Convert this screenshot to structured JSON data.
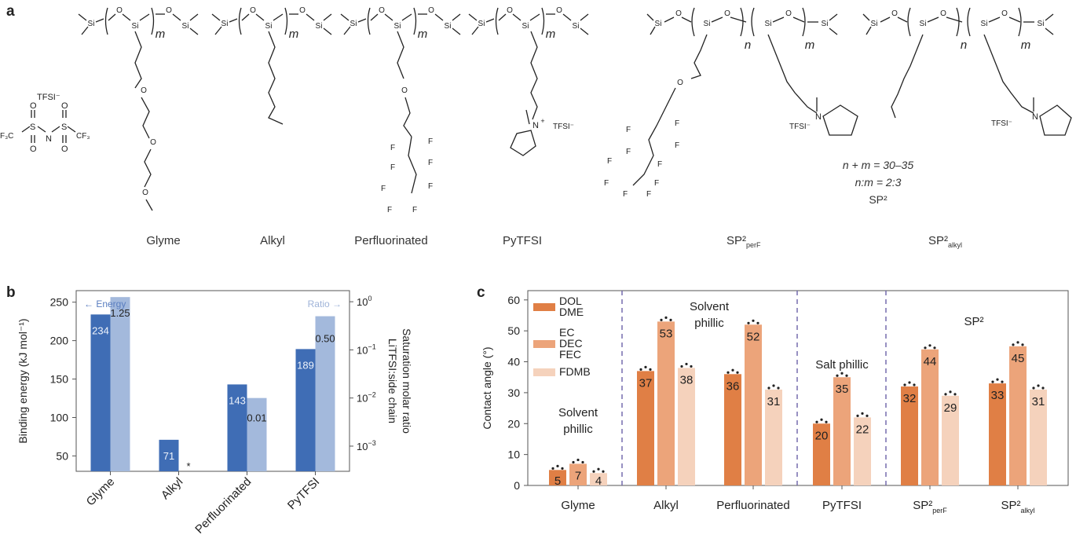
{
  "panel_labels": {
    "a": "a",
    "b": "b",
    "c": "c"
  },
  "panel_a": {
    "tfsi_label": "TFSI⁻",
    "tfsi_n": "N",
    "tfsi_s": "S",
    "tfsi_cf3": "CF₃",
    "tfsi_f3c": "F₃C",
    "si": "Si",
    "o": "O",
    "f": "F",
    "n_plus": "N",
    "plus": "+",
    "tfsi_counter": "TFSI⁻",
    "m": "m",
    "n": "n",
    "names": [
      "Glyme",
      "Alkyl",
      "Perfluorinated",
      "PyTFSI"
    ],
    "sp2_perf_main": "SP²",
    "sp2_perf_sub": "perF",
    "sp2_alkyl_main": "SP²",
    "sp2_alkyl_sub": "alkyl",
    "formula_lines": [
      "n + m = 30–35",
      "n:m = 2:3",
      "SP²"
    ]
  },
  "chart_data": [
    {
      "type": "bar",
      "panel": "b",
      "categories": [
        "Glyme",
        "Alkyl",
        "Perfluorinated",
        "PyTFSI"
      ],
      "ylabel": "Binding energy (kJ mol⁻¹)",
      "y2label_lines": [
        "Saturation molar ratio",
        "LiTFSI:side chain"
      ],
      "ylim": [
        30,
        265
      ],
      "yticks": [
        50,
        100,
        150,
        200,
        250
      ],
      "y2scale": "log",
      "y2lim": [
        0.0003,
        1.7
      ],
      "y2ticks": [
        {
          "value": 1,
          "label_main": "10",
          "label_exp": "0"
        },
        {
          "value": 0.1,
          "label_main": "10",
          "label_exp": "−1"
        },
        {
          "value": 0.01,
          "label_main": "10",
          "label_exp": "−2"
        },
        {
          "value": 0.001,
          "label_main": "10",
          "label_exp": "−3"
        }
      ],
      "arrow_left": "← Energy",
      "arrow_right": "Ratio →",
      "missing_marker": "*",
      "series": [
        {
          "name": "Energy",
          "axis": "left",
          "color": "#3f6db5",
          "values": [
            234,
            71,
            143,
            189
          ],
          "labels": [
            "234",
            "71",
            "143",
            "189"
          ]
        },
        {
          "name": "Ratio",
          "axis": "right",
          "color": "#a3b9dc",
          "values": [
            1.25,
            null,
            0.01,
            0.5
          ],
          "labels": [
            "1.25",
            "",
            "0.01",
            "0.50"
          ]
        }
      ]
    },
    {
      "type": "bar",
      "panel": "c",
      "categories": [
        "Glyme",
        "Alkyl",
        "Perfluorinated",
        "PyTFSI",
        "SP²perF",
        "SP²alkyl"
      ],
      "category_labels": [
        {
          "main": "Glyme",
          "sub": ""
        },
        {
          "main": "Alkyl",
          "sub": ""
        },
        {
          "main": "Perfluorinated",
          "sub": ""
        },
        {
          "main": "PyTFSI",
          "sub": ""
        },
        {
          "main": "SP²",
          "sub": "perF"
        },
        {
          "main": "SP²",
          "sub": "alkyl"
        }
      ],
      "ylabel": "Contact angle (°)",
      "ylim": [
        0,
        63
      ],
      "yticks": [
        0,
        10,
        20,
        30,
        40,
        50,
        60
      ],
      "legend": [
        {
          "lines": [
            "DOL",
            "DME"
          ],
          "color": "#e07f45"
        },
        {
          "lines": [
            "EC",
            "DEC",
            "FEC"
          ],
          "color": "#eca47a"
        },
        {
          "lines": [
            "FDMB"
          ],
          "color": "#f5d2bc"
        }
      ],
      "legend_position": "top-left",
      "series": [
        {
          "name": "DOL DME",
          "color": "#e07f45",
          "values": [
            5,
            37,
            36,
            20,
            32,
            33
          ]
        },
        {
          "name": "EC DEC FEC",
          "color": "#eca47a",
          "values": [
            7,
            53,
            52,
            35,
            44,
            45
          ]
        },
        {
          "name": "FDMB",
          "color": "#f5d2bc",
          "values": [
            4,
            38,
            31,
            22,
            29,
            31
          ]
        }
      ],
      "region_labels": [
        {
          "lines": [
            "Solvent",
            "phillic"
          ]
        },
        {
          "lines": [
            "Solvent",
            "phillic"
          ]
        },
        {
          "lines": [
            "Salt phillic"
          ]
        },
        {
          "lines": [
            "SP²"
          ]
        }
      ]
    }
  ]
}
